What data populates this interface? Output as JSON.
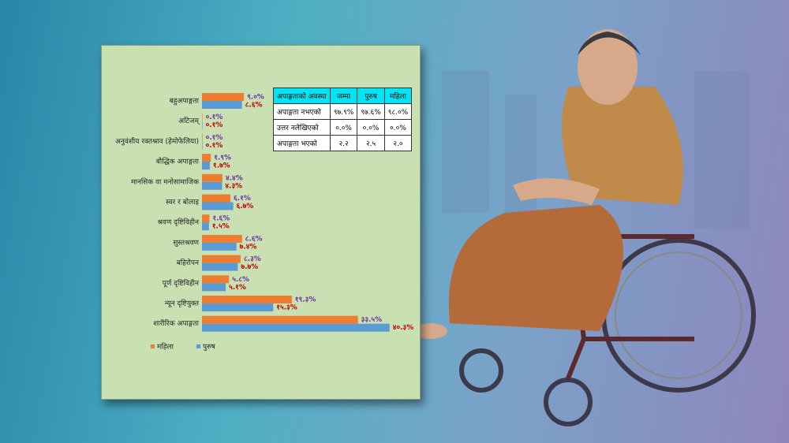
{
  "chart_data": {
    "type": "bar",
    "orientation": "horizontal",
    "categories": [
      "बहुअपाङ्गता",
      "अटिजम्",
      "अनुवंशीय रक्तश्राव (हेमोफेलिया)",
      "बौद्धिक अपाङ्गता",
      "मानसिक वा मनोसामाजिक",
      "स्वर र बोलाइ",
      "श्रवण दृष्टिविहीन",
      "सुस्तश्रवण",
      "बहिरोपन",
      "पूर्ण दृष्टिविहीन",
      "न्यून दृष्टियुक्त",
      "शारीरिक अपाङ्गता"
    ],
    "series": [
      {
        "name": "महिला",
        "color": "#ed7d31",
        "label_color": "#7030a0",
        "values": [
          9.0,
          0.1,
          0.1,
          1.9,
          4.4,
          6.1,
          1.6,
          8.6,
          8.3,
          5.8,
          19.3,
          33.5
        ],
        "value_labels": [
          "९.०%",
          "०.१%",
          "०.१%",
          "१.९%",
          "४.४%",
          "६.१%",
          "१.६%",
          "८.६%",
          "८.३%",
          "५.८%",
          "१९.३%",
          "३३.५%"
        ]
      },
      {
        "name": "पुरुष",
        "color": "#5b9bd5",
        "label_color": "#c00000",
        "values": [
          8.6,
          0.1,
          0.1,
          1.7,
          4.3,
          6.7,
          1.5,
          7.4,
          7.7,
          5.1,
          15.3,
          40.3
        ],
        "value_labels": [
          "८.६%",
          "०.१%",
          "०.१%",
          "१.७%",
          "४.३%",
          "६.७%",
          "१.५%",
          "७.४%",
          "७.७%",
          "५.१%",
          "१५.३%",
          "४०.३%"
        ]
      }
    ],
    "legend": "bottom-left"
  },
  "table": {
    "header": [
      "अपाङ्गताको अवस्था",
      "जम्मा",
      "पुरुष",
      "महिला"
    ],
    "rows": [
      [
        "अपाङ्गता नभएको",
        "९७.९%",
        "९७.६%",
        "९८.०%"
      ],
      [
        "उत्तर नलेखिएको",
        "०.०%",
        "०.०%",
        "०.०%"
      ],
      [
        "अपाङ्गता भएको",
        "२.२",
        "२.५",
        "२.०"
      ]
    ]
  }
}
